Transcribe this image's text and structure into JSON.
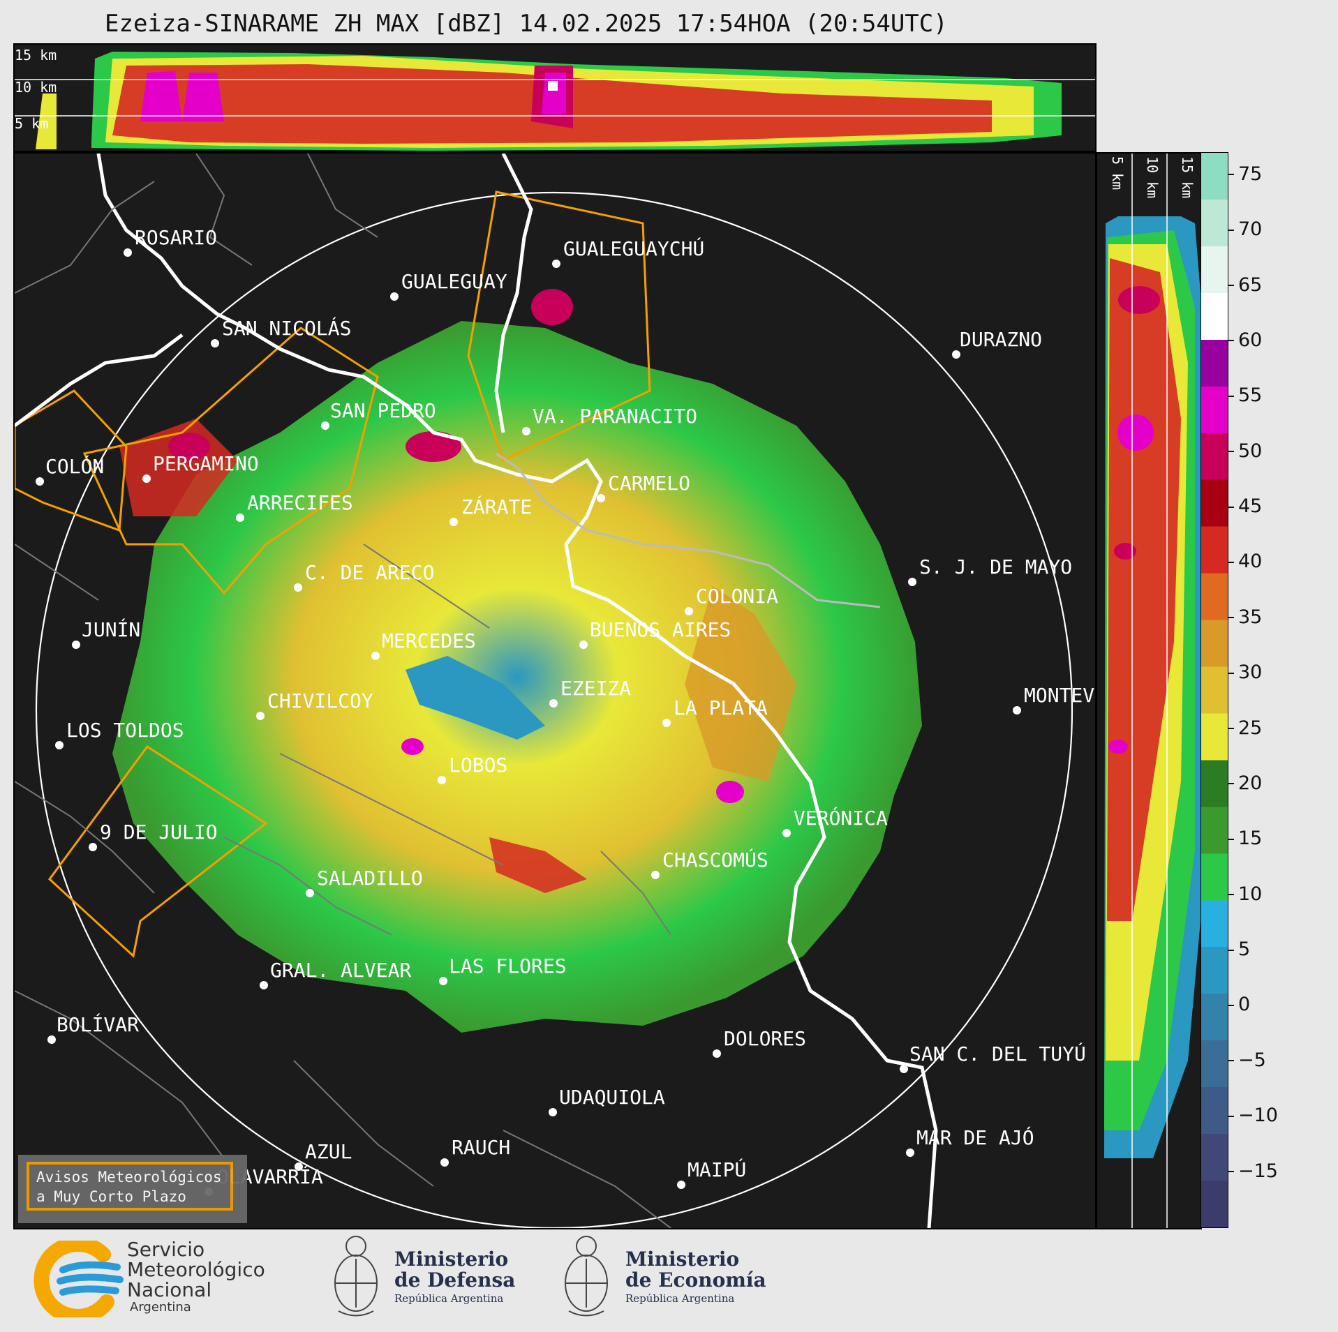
{
  "title": "Ezeiza-SINARAME ZH MAX [dBZ] 14.02.2025 17:54HOA (20:54UTC)",
  "top_panel": {
    "height_labels": [
      "15 km",
      "10 km",
      "5 km"
    ]
  },
  "side_panel": {
    "height_labels": [
      "5 km",
      "10 km",
      "15 km"
    ]
  },
  "colorbar": {
    "ticks": [
      "75",
      "70",
      "65",
      "60",
      "55",
      "50",
      "45",
      "40",
      "35",
      "30",
      "25",
      "20",
      "15",
      "10",
      "5",
      "0",
      "−5",
      "−10",
      "−15"
    ],
    "colors": [
      "#3c3c6a",
      "#404878",
      "#3e5a88",
      "#3a6e98",
      "#3282aa",
      "#2a98c0",
      "#28b0e0",
      "#2cc848",
      "#3a9a30",
      "#2c7c24",
      "#e8e838",
      "#e0c032",
      "#d89a28",
      "#e06a20",
      "#d42a22",
      "#a80010",
      "#c8005a",
      "#e400c8",
      "#9800a0",
      "#ffffff",
      "#e8f4ee",
      "#bce8d6",
      "#8edcc2"
    ],
    "range": [
      -20,
      77
    ]
  },
  "map": {
    "cities": [
      {
        "name": "ROSARIO"
      },
      {
        "name": "GUALEGUAYCHÚ"
      },
      {
        "name": "GUALEGUAY"
      },
      {
        "name": "SAN NICOLÁS"
      },
      {
        "name": "DURAZNO"
      },
      {
        "name": "SAN PEDRO"
      },
      {
        "name": "VA. PARANACITO"
      },
      {
        "name": "COLÓN"
      },
      {
        "name": "PERGAMINO"
      },
      {
        "name": "CARMELO"
      },
      {
        "name": "ARRECIFES"
      },
      {
        "name": "ZÁRATE"
      },
      {
        "name": "S. J. DE MAYO"
      },
      {
        "name": "C. DE ARECO"
      },
      {
        "name": "COLONIA"
      },
      {
        "name": "JUNÍN"
      },
      {
        "name": "BUENOS AIRES"
      },
      {
        "name": "MERCEDES"
      },
      {
        "name": "MONTEVIDEO"
      },
      {
        "name": "EZEIZA"
      },
      {
        "name": "CHIVILCOY"
      },
      {
        "name": "LA PLATA"
      },
      {
        "name": "LOS TOLDOS"
      },
      {
        "name": "LOBOS"
      },
      {
        "name": "VERÓNICA"
      },
      {
        "name": "9 DE JULIO"
      },
      {
        "name": "CHASCOMÚS"
      },
      {
        "name": "SALADILLO"
      },
      {
        "name": "GRAL. ALVEAR"
      },
      {
        "name": "LAS FLORES"
      },
      {
        "name": "BOLÍVAR"
      },
      {
        "name": "DOLORES"
      },
      {
        "name": "SAN C. DEL TUYÚ"
      },
      {
        "name": "UDAQUIOLA"
      },
      {
        "name": "AZUL"
      },
      {
        "name": "RAUCH"
      },
      {
        "name": "MAR DE AJÓ"
      },
      {
        "name": "OLAVARRÍA"
      },
      {
        "name": "MAIPÚ"
      }
    ]
  },
  "warning_box": {
    "line1": "Avisos Meteorológicos",
    "line2": "a Muy Corto Plazo"
  },
  "footer": {
    "smn": {
      "line1": "Servicio",
      "line2": "Meteorológico",
      "line3": "Nacional",
      "line4": "Argentina"
    },
    "defensa": {
      "line1": "Ministerio",
      "line2": "de Defensa",
      "line3": "República Argentina"
    },
    "economia": {
      "line1": "Ministerio",
      "line2": "de Economía",
      "line3": "República Argentina"
    }
  }
}
